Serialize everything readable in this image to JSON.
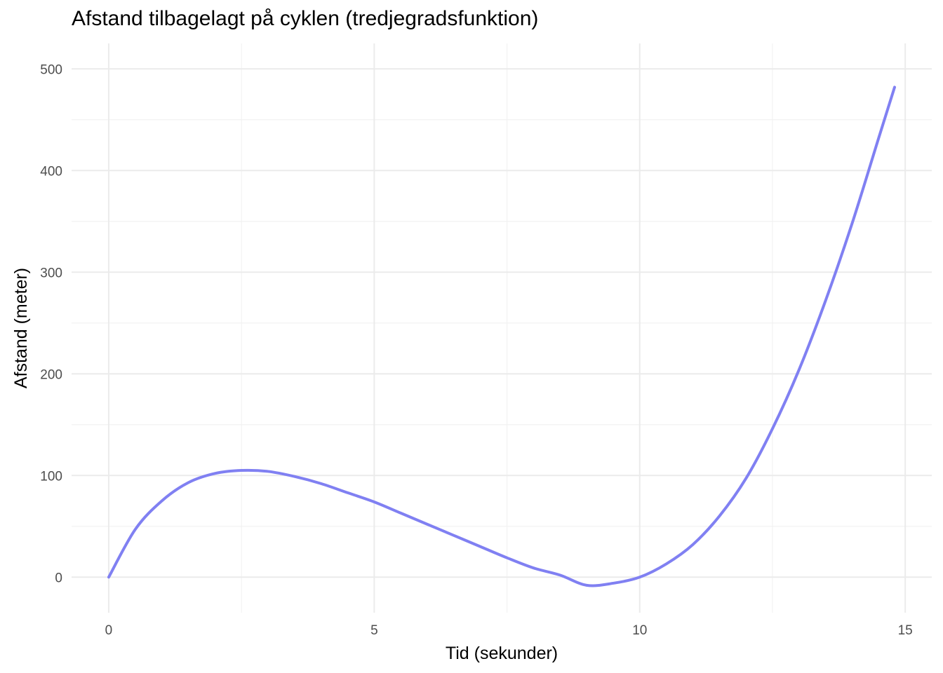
{
  "chart_data": {
    "type": "line",
    "title": "Afstand tilbagelagt på cyklen (tredjegradsfunktion)",
    "xlabel": "Tid (sekunder)",
    "ylabel": "Afstand (meter)",
    "xlim": [
      -0.7,
      15.5
    ],
    "ylim": [
      -35,
      525
    ],
    "x_ticks": [
      0,
      5,
      10,
      15
    ],
    "y_ticks": [
      0,
      100,
      200,
      300,
      400,
      500
    ],
    "x_tick_labels": [
      "0",
      "5",
      "10",
      "15"
    ],
    "y_tick_labels": [
      "0",
      "100",
      "200",
      "300",
      "400",
      "500"
    ],
    "grid": true,
    "legend": "none",
    "line_color": "#8080f2",
    "x": [
      0,
      0.5,
      1,
      1.5,
      2,
      2.5,
      3,
      3.5,
      4,
      4.5,
      5,
      5.5,
      6,
      6.5,
      7,
      7.5,
      8,
      8.5,
      9,
      9.5,
      10,
      10.5,
      11,
      11.5,
      12,
      12.5,
      13,
      13.5,
      14,
      14.5,
      14.8
    ],
    "y": [
      0,
      47,
      75,
      93,
      102,
      105,
      104,
      99,
      92,
      83,
      74,
      63,
      52,
      41,
      30,
      19,
      9,
      2,
      -8,
      -6,
      0,
      13,
      32,
      60,
      97,
      146,
      204,
      272,
      348,
      432,
      482
    ]
  }
}
